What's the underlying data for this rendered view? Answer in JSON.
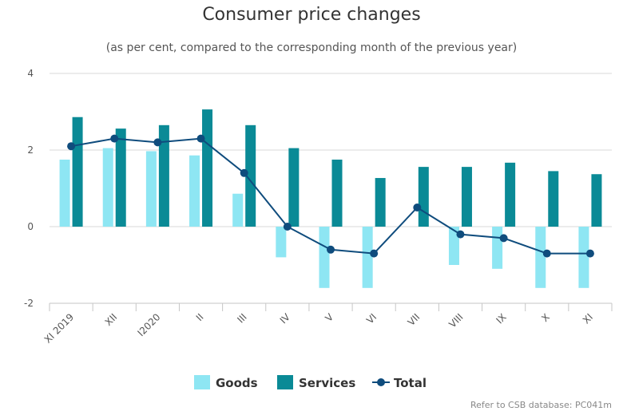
{
  "chart_data": {
    "type": "bar",
    "title": "Consumer price changes",
    "subtitle": "(as per cent, compared to the corresponding month of the previous year)",
    "categories": [
      "XI 2019",
      "XII",
      "I2020",
      "II",
      "III",
      "IV",
      "V",
      "VI",
      "VII",
      "VIII",
      "IX",
      "X",
      "XI"
    ],
    "series": [
      {
        "name": "Goods",
        "type": "bar",
        "color": "#8ee6f3",
        "values": [
          1.75,
          2.05,
          1.97,
          1.86,
          0.86,
          -0.8,
          -1.6,
          -1.6,
          0.0,
          -1.0,
          -1.1,
          -1.6,
          -1.6
        ]
      },
      {
        "name": "Services",
        "type": "bar",
        "color": "#0a8a96",
        "values": [
          2.86,
          2.56,
          2.65,
          3.06,
          2.65,
          2.05,
          1.75,
          1.27,
          1.56,
          1.56,
          1.67,
          1.45,
          1.37
        ]
      },
      {
        "name": "Total",
        "type": "line",
        "color": "#0f4c7d",
        "values": [
          2.1,
          2.3,
          2.2,
          2.3,
          1.4,
          0.0,
          -0.6,
          -0.7,
          0.5,
          -0.2,
          -0.3,
          -0.7,
          -0.7
        ]
      }
    ],
    "ylim": [
      -2,
      4
    ],
    "yticks": [
      -2,
      0,
      2,
      4
    ],
    "grid": true,
    "legend": "bottom-center"
  },
  "credit": "Refer to CSB database: PC041m"
}
